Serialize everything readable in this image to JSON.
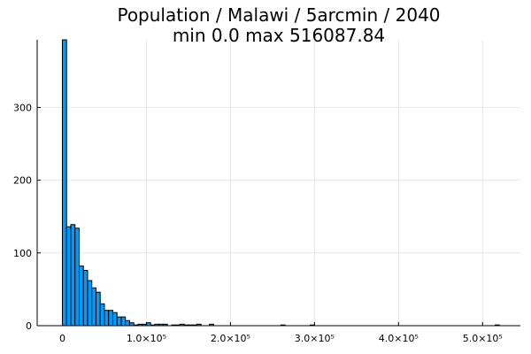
{
  "chart_data": {
    "type": "bar",
    "title_line1": "Population / Malawi / 5arcmin / 2040",
    "title_line2": "min 0.0  max 516087.84",
    "xlabel": "",
    "ylabel": "",
    "grid": true,
    "legend": "none",
    "xlim": [
      -30000,
      545000
    ],
    "ylim": [
      0,
      393
    ],
    "bin_width": 5000,
    "x_ticks": [
      {
        "value": 0,
        "label": "0"
      },
      {
        "value": 100000,
        "label": "1.0×10⁵"
      },
      {
        "value": 200000,
        "label": "2.0×10⁵"
      },
      {
        "value": 300000,
        "label": "3.0×10⁵"
      },
      {
        "value": 400000,
        "label": "4.0×10⁵"
      },
      {
        "value": 500000,
        "label": "5.0×10⁵"
      }
    ],
    "y_ticks": [
      {
        "value": 0,
        "label": "0"
      },
      {
        "value": 100,
        "label": "100"
      },
      {
        "value": 200,
        "label": "200"
      },
      {
        "value": 300,
        "label": "300"
      }
    ],
    "bins": [
      {
        "x": 0,
        "count": 393
      },
      {
        "x": 5000,
        "count": 136
      },
      {
        "x": 10000,
        "count": 139
      },
      {
        "x": 15000,
        "count": 134
      },
      {
        "x": 20000,
        "count": 82
      },
      {
        "x": 25000,
        "count": 76
      },
      {
        "x": 30000,
        "count": 62
      },
      {
        "x": 35000,
        "count": 52
      },
      {
        "x": 40000,
        "count": 46
      },
      {
        "x": 45000,
        "count": 30
      },
      {
        "x": 50000,
        "count": 21
      },
      {
        "x": 55000,
        "count": 21
      },
      {
        "x": 60000,
        "count": 18
      },
      {
        "x": 65000,
        "count": 12
      },
      {
        "x": 70000,
        "count": 12
      },
      {
        "x": 75000,
        "count": 7
      },
      {
        "x": 80000,
        "count": 4
      },
      {
        "x": 85000,
        "count": 1
      },
      {
        "x": 90000,
        "count": 2
      },
      {
        "x": 95000,
        "count": 2
      },
      {
        "x": 100000,
        "count": 4
      },
      {
        "x": 105000,
        "count": 1
      },
      {
        "x": 110000,
        "count": 2
      },
      {
        "x": 115000,
        "count": 2
      },
      {
        "x": 120000,
        "count": 2
      },
      {
        "x": 130000,
        "count": 1
      },
      {
        "x": 135000,
        "count": 1
      },
      {
        "x": 140000,
        "count": 2
      },
      {
        "x": 145000,
        "count": 1
      },
      {
        "x": 150000,
        "count": 1
      },
      {
        "x": 155000,
        "count": 1
      },
      {
        "x": 160000,
        "count": 2
      },
      {
        "x": 175000,
        "count": 2
      },
      {
        "x": 260000,
        "count": 1
      },
      {
        "x": 295000,
        "count": 1
      },
      {
        "x": 515000,
        "count": 1
      }
    ]
  }
}
